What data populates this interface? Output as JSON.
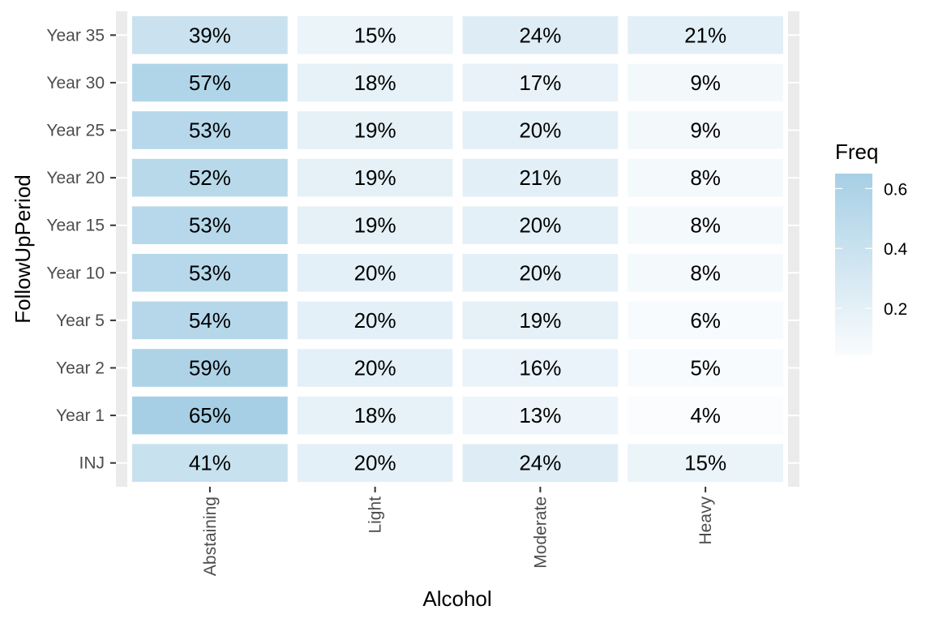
{
  "chart_data": {
    "type": "heatmap",
    "title": "",
    "xlabel": "Alcohol",
    "ylabel": "FollowUpPeriod",
    "x_categories": [
      "Abstaining",
      "Light",
      "Moderate",
      "Heavy"
    ],
    "y_categories": [
      "INJ",
      "Year 1",
      "Year 2",
      "Year 5",
      "Year 10",
      "Year 15",
      "Year 20",
      "Year 25",
      "Year 30",
      "Year 35"
    ],
    "values": {
      "INJ": [
        0.41,
        0.2,
        0.24,
        0.15
      ],
      "Year 1": [
        0.65,
        0.18,
        0.13,
        0.04
      ],
      "Year 2": [
        0.59,
        0.2,
        0.16,
        0.05
      ],
      "Year 5": [
        0.54,
        0.2,
        0.19,
        0.06
      ],
      "Year 10": [
        0.53,
        0.2,
        0.2,
        0.08
      ],
      "Year 15": [
        0.53,
        0.19,
        0.2,
        0.08
      ],
      "Year 20": [
        0.52,
        0.19,
        0.21,
        0.08
      ],
      "Year 25": [
        0.53,
        0.19,
        0.2,
        0.09
      ],
      "Year 30": [
        0.57,
        0.18,
        0.17,
        0.09
      ],
      "Year 35": [
        0.39,
        0.15,
        0.24,
        0.21
      ]
    },
    "cell_labels": {
      "INJ": [
        "41%",
        "20%",
        "24%",
        "15%"
      ],
      "Year 1": [
        "65%",
        "18%",
        "13%",
        "4%"
      ],
      "Year 2": [
        "59%",
        "20%",
        "16%",
        "5%"
      ],
      "Year 5": [
        "54%",
        "20%",
        "19%",
        "6%"
      ],
      "Year 10": [
        "53%",
        "20%",
        "20%",
        "8%"
      ],
      "Year 15": [
        "53%",
        "19%",
        "20%",
        "8%"
      ],
      "Year 20": [
        "52%",
        "19%",
        "21%",
        "8%"
      ],
      "Year 25": [
        "53%",
        "19%",
        "20%",
        "9%"
      ],
      "Year 30": [
        "57%",
        "18%",
        "17%",
        "9%"
      ],
      "Year 35": [
        "39%",
        "15%",
        "24%",
        "21%"
      ]
    },
    "legend": {
      "title": "Freq",
      "position": "right",
      "ticks": [
        0.2,
        0.4,
        0.6
      ],
      "tick_labels": [
        "0.2",
        "0.4",
        "0.6"
      ],
      "range": [
        0.04,
        0.65
      ]
    },
    "color_low": "#FFFFFF",
    "color_high": "#A6CFE5",
    "panel_background": "#EBEBEB",
    "grid": true
  }
}
